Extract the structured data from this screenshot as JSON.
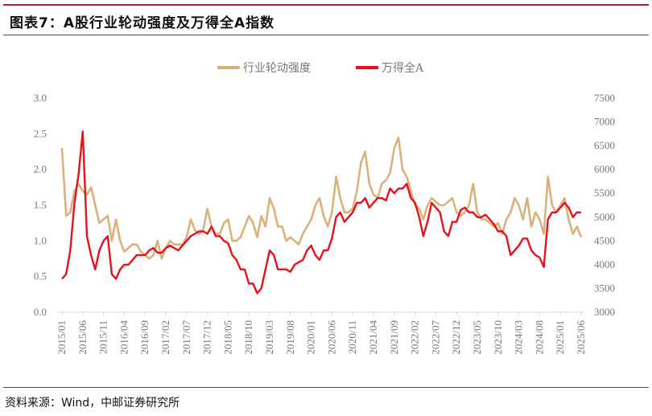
{
  "title": "图表7：A股行业轮动强度及万得全A指数",
  "source": "资料来源：Wind，中邮证券研究所",
  "colors": {
    "rotation": "#d9b27a",
    "winda": "#e8101a",
    "rule": "#d9121b"
  },
  "chart_data": {
    "type": "line",
    "title": "",
    "xlabel": "",
    "x_start": "2015/01",
    "x_end": "2025/06",
    "x_ticks": [
      "2015/01",
      "2015/06",
      "2015/11",
      "2016/04",
      "2016/09",
      "2017/02",
      "2017/07",
      "2017/12",
      "2018/05",
      "2018/10",
      "2019/03",
      "2019/08",
      "2020/01",
      "2020/06",
      "2020/11",
      "2021/04",
      "2021/09",
      "2022/02",
      "2022/07",
      "2022/12",
      "2023/05",
      "2023/10",
      "2024/03",
      "2024/08",
      "2025/01",
      "2025/06"
    ],
    "y_left": {
      "range": [
        0,
        3.0
      ],
      "ticks": [
        "0.0",
        "0.5",
        "1.0",
        "1.5",
        "2.0",
        "2.5",
        "3.0"
      ]
    },
    "y_right": {
      "range": [
        3000,
        7500
      ],
      "ticks": [
        "3000",
        "3500",
        "4000",
        "4500",
        "5000",
        "5500",
        "6000",
        "6500",
        "7000",
        "7500"
      ]
    },
    "grid": false,
    "legend": "top-center",
    "series": [
      {
        "name": "行业轮动强度",
        "axis": "left",
        "color": "#d9b27a",
        "values": [
          2.3,
          1.35,
          1.4,
          1.7,
          1.8,
          1.7,
          1.65,
          1.75,
          1.5,
          1.25,
          1.3,
          1.35,
          1.0,
          1.3,
          1.0,
          0.85,
          0.9,
          0.95,
          0.95,
          0.85,
          0.8,
          0.75,
          0.8,
          1.0,
          0.75,
          0.9,
          1.0,
          0.95,
          0.95,
          0.95,
          1.05,
          1.3,
          1.15,
          1.1,
          1.15,
          1.45,
          1.2,
          1.1,
          1.1,
          1.25,
          1.3,
          1.0,
          1.0,
          1.05,
          1.2,
          1.35,
          1.25,
          1.05,
          1.35,
          1.2,
          1.6,
          1.45,
          1.2,
          1.2,
          1.0,
          1.05,
          1.0,
          0.95,
          1.1,
          1.2,
          1.3,
          1.5,
          1.6,
          1.35,
          1.2,
          1.4,
          1.9,
          1.6,
          1.4,
          1.4,
          1.45,
          1.7,
          2.1,
          2.25,
          1.8,
          1.65,
          1.6,
          1.8,
          1.85,
          1.95,
          2.3,
          2.45,
          2.0,
          1.9,
          1.7,
          1.5,
          1.45,
          1.3,
          1.5,
          1.6,
          1.55,
          1.5,
          1.5,
          1.55,
          1.6,
          1.4,
          1.35,
          1.4,
          1.5,
          1.8,
          1.4,
          1.3,
          1.3,
          1.25,
          1.2,
          1.25,
          1.1,
          1.3,
          1.4,
          1.6,
          1.5,
          1.3,
          1.6,
          1.2,
          1.4,
          1.3,
          1.1,
          1.9,
          1.5,
          1.4,
          1.5,
          1.6,
          1.3,
          1.1,
          1.2,
          1.05
        ]
      },
      {
        "name": "万得全A",
        "axis": "right",
        "color": "#e8101a",
        "values": [
          3700,
          3800,
          4300,
          5300,
          5900,
          6800,
          4600,
          4200,
          3900,
          4300,
          4500,
          4600,
          3800,
          3700,
          3900,
          4000,
          4000,
          4100,
          4200,
          4200,
          4200,
          4300,
          4350,
          4250,
          4250,
          4350,
          4400,
          4350,
          4300,
          4400,
          4500,
          4600,
          4650,
          4700,
          4700,
          4650,
          4800,
          4600,
          4600,
          4500,
          4450,
          4200,
          4100,
          3900,
          3900,
          3600,
          3600,
          3400,
          3500,
          3900,
          4300,
          4200,
          3900,
          3900,
          3900,
          3850,
          4000,
          4050,
          4100,
          4300,
          4400,
          4200,
          4100,
          4300,
          4300,
          4550,
          5000,
          5100,
          4900,
          5000,
          5100,
          5300,
          5300,
          5400,
          5200,
          5300,
          5400,
          5400,
          5350,
          5600,
          5500,
          5600,
          5600,
          5700,
          5400,
          5300,
          5000,
          4600,
          4900,
          5300,
          5200,
          5100,
          4700,
          4600,
          4900,
          4900,
          5150,
          5200,
          5100,
          5100,
          5000,
          5000,
          5050,
          4950,
          4850,
          4700,
          4700,
          4600,
          4200,
          4300,
          4400,
          4550,
          4550,
          4300,
          4200,
          4150,
          3950,
          4950,
          5100,
          5100,
          5200,
          5300,
          5200,
          5000,
          5100,
          5100
        ]
      }
    ]
  }
}
